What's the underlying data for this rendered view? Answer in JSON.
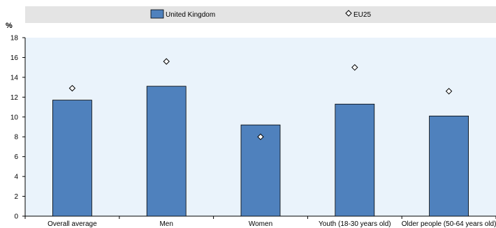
{
  "chart_data": {
    "type": "bar",
    "unit_label": "%",
    "categories": [
      "Overall average",
      "Men",
      "Women",
      "Youth (18-30 years old)",
      "Older people (50-64 years old)"
    ],
    "series": [
      {
        "name": "United Kingdom",
        "kind": "bar",
        "color": "#4f81bd",
        "values": [
          11.7,
          13.1,
          9.2,
          11.3,
          10.1
        ]
      },
      {
        "name": "EU25",
        "kind": "marker",
        "marker": "diamond",
        "color": "#ffffff",
        "values": [
          12.9,
          15.6,
          8.0,
          15.0,
          12.6
        ]
      }
    ],
    "ylim": [
      0,
      18
    ],
    "yticks": [
      0,
      2,
      4,
      6,
      8,
      10,
      12,
      14,
      16,
      18
    ],
    "grid": false,
    "plot_background": "#eaf3fb",
    "legend_position": "top"
  }
}
